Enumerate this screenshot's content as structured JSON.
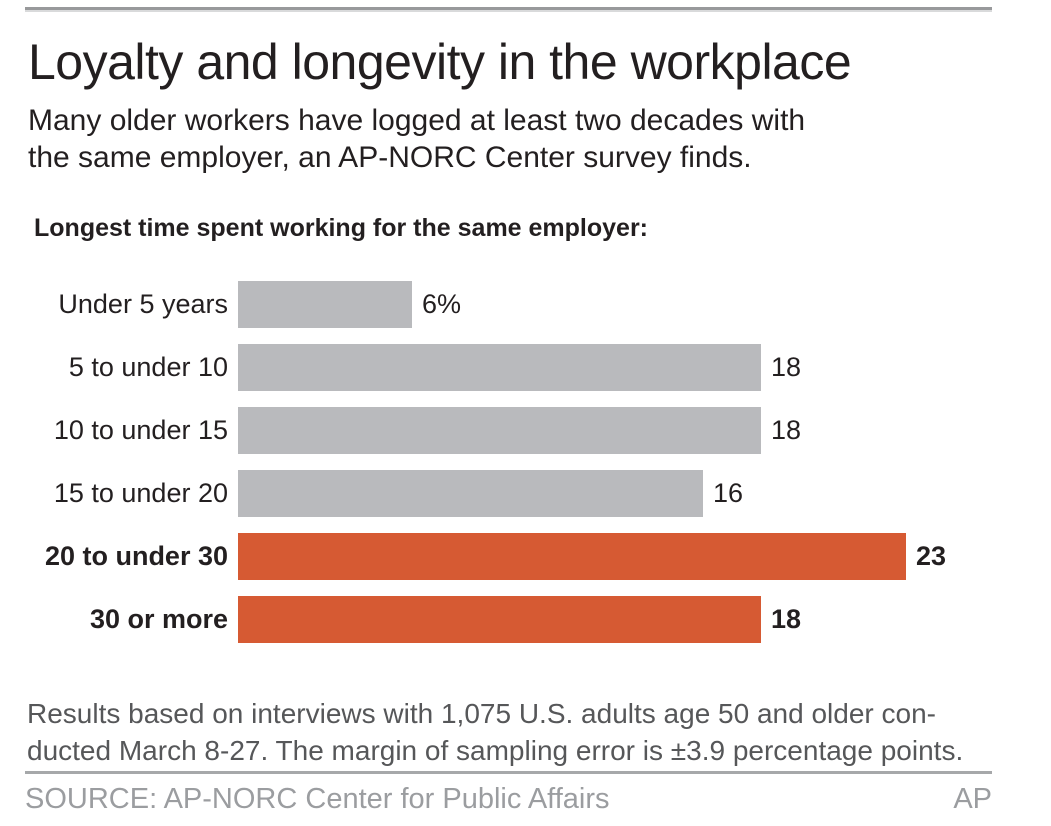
{
  "header": {
    "title": "Loyalty and longevity in the workplace",
    "subtitle_lines": [
      "Many older workers have logged at least two decades with",
      "the same employer, an AP-NORC Center survey finds."
    ]
  },
  "chart_data": {
    "type": "bar",
    "orientation": "horizontal",
    "title": "Longest time spent working for the same employer:",
    "categories": [
      "Under 5 years",
      "5 to under 10",
      "10 to under 15",
      "15 to under 20",
      "20 to under 30",
      "30 or more"
    ],
    "values": [
      6,
      18,
      18,
      16,
      23,
      18
    ],
    "value_labels": [
      "6%",
      "18",
      "18",
      "16",
      "23",
      "18"
    ],
    "emphasized": [
      false,
      false,
      false,
      false,
      true,
      true
    ],
    "xlim": [
      0,
      25.6
    ],
    "grid": false,
    "legend": "none",
    "colors": {
      "bar_default": "#b9babd",
      "bar_emphasis": "#d65a33",
      "text": "#231f20"
    }
  },
  "footnote_lines": [
    "Results based on interviews with 1,075 U.S. adults age 50 and older con-",
    "ducted March 8-27. The margin of sampling error is ±3.9 percentage points."
  ],
  "footer": {
    "source": "SOURCE: AP-NORC Center for Public Affairs",
    "credit": "AP"
  }
}
